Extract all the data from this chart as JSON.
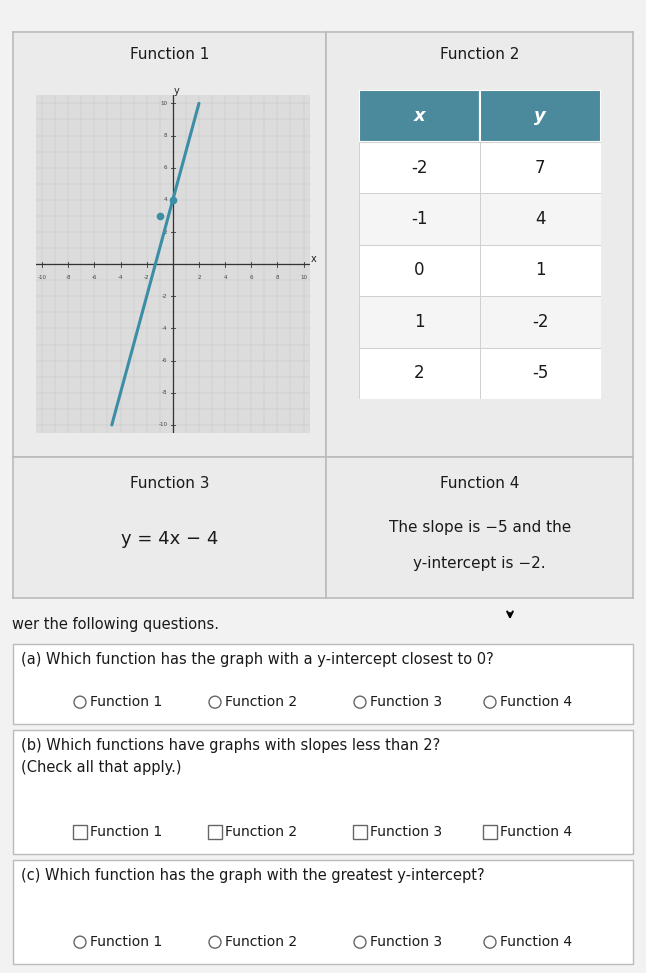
{
  "bg_color": "#e8e8e8",
  "page_bg": "#f2f2f2",
  "cell_bg": "#ebebeb",
  "header_bg": "#4a8a9c",
  "top_bar_color": "#5cad72",
  "func1_title": "Function 1",
  "func2_title": "Function 2",
  "func3_title": "Function 3",
  "func4_title": "Function 4",
  "func3_equation": "y = 4x − 4",
  "func4_desc_line1": "The slope is −5 and the",
  "func4_desc_line2": "y-intercept is −2.",
  "table_headers": [
    "x",
    "y"
  ],
  "table_data": [
    [
      -2,
      7
    ],
    [
      -1,
      4
    ],
    [
      0,
      1
    ],
    [
      1,
      -2
    ],
    [
      2,
      -5
    ]
  ],
  "graph_line_color": "#3b8ea5",
  "graph_line_slope": 3,
  "graph_line_intercept": 4,
  "graph_dot1": [
    0,
    4
  ],
  "graph_dot2": [
    -1,
    3
  ],
  "q_intro": "wer the following questions.",
  "qa_text": "(a) Which function has the graph with a y-intercept closest to 0?",
  "qa_options": [
    "Function 1",
    "Function 2",
    "Function 3",
    "Function 4"
  ],
  "qb_line1": "(b) Which functions have graphs with slopes less than 2?",
  "qb_line2": "(Check all that apply.)",
  "qb_options": [
    "Function 1",
    "Function 2",
    "Function 3",
    "Function 4"
  ],
  "qc_text": "(c) Which function has the graph with the greatest y-intercept?",
  "qc_options": [
    "Function 1",
    "Function 2",
    "Function 3",
    "Function 4"
  ],
  "cell_bg_white": "#ffffff",
  "cell_bg_alt": "#f5f5f5",
  "border_color": "#bbbbbb",
  "text_color": "#1a1a1a",
  "graph_bg": "#dcdcdc",
  "graph_grid_color": "#c0c0c0"
}
